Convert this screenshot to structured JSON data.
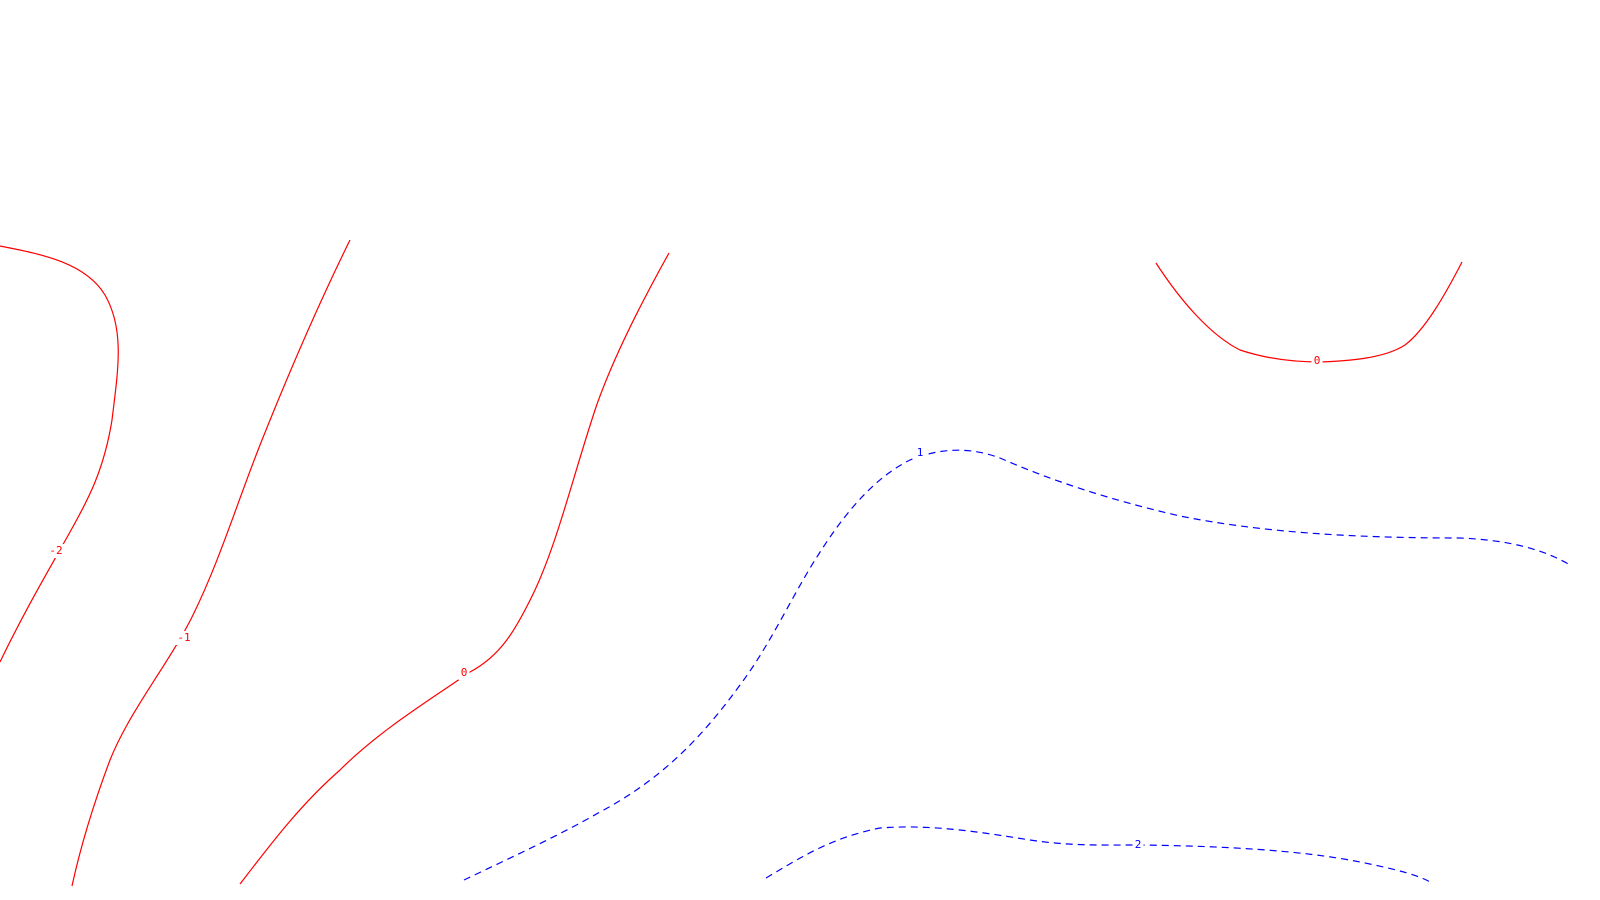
{
  "chart_data": {
    "type": "contour",
    "title": "",
    "xlabel": "",
    "ylabel": "",
    "grid": false,
    "colors": {
      "negative_and_zero": "#ff0000",
      "positive": "#0000ff"
    },
    "contours": [
      {
        "level": "-2",
        "label": "-2",
        "sign": "negative",
        "style": "solid"
      },
      {
        "level": "-1",
        "label": "-1",
        "sign": "negative",
        "style": "solid"
      },
      {
        "level": "0",
        "label": "0",
        "sign": "zero",
        "style": "solid"
      },
      {
        "level": "0",
        "label": "0",
        "sign": "zero",
        "style": "solid"
      },
      {
        "level": "1",
        "label": "1",
        "sign": "positive",
        "style": "dashed"
      },
      {
        "level": "2",
        "label": "2",
        "sign": "positive",
        "style": "dashed"
      }
    ]
  }
}
